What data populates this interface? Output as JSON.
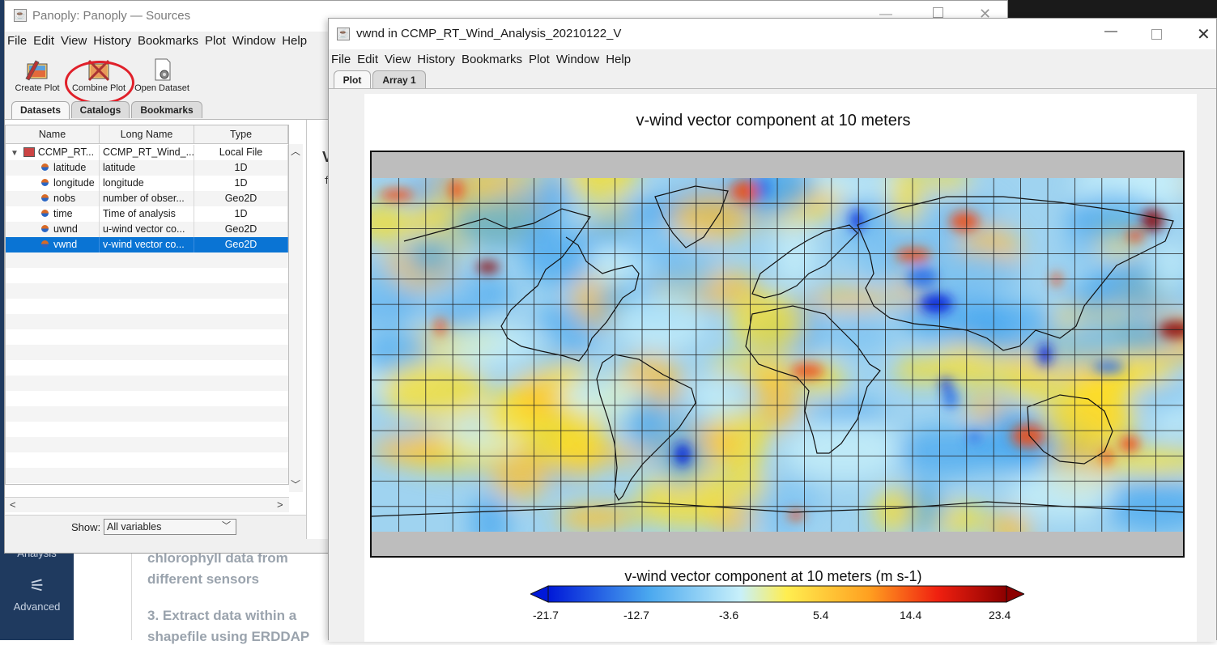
{
  "background": {
    "analysis_label": "Analysis",
    "advanced_label": "Advanced",
    "text_lines": [
      "chlorophyll data from",
      "different sensors",
      "3. Extract data within a",
      "shapefile using ERDDAP"
    ]
  },
  "sources_window": {
    "title": "Panoply: Panoply — Sources",
    "menu": [
      "File",
      "Edit",
      "View",
      "History",
      "Bookmarks",
      "Plot",
      "Window",
      "Help"
    ],
    "toolbar": {
      "create_plot": "Create Plot",
      "combine_plot": "Combine Plot",
      "open_dataset": "Open Dataset"
    },
    "tabs": [
      "Datasets",
      "Catalogs",
      "Bookmarks"
    ],
    "table": {
      "headers": [
        "Name",
        "Long Name",
        "Type"
      ],
      "dataset": {
        "name": "CCMP_RT...",
        "long_name": "CCMP_RT_Wind_...",
        "type": "Local File"
      },
      "rows": [
        {
          "name": "latitude",
          "long_name": "latitude",
          "type": "1D"
        },
        {
          "name": "longitude",
          "long_name": "longitude",
          "type": "1D"
        },
        {
          "name": "nobs",
          "long_name": "number of obser...",
          "type": "Geo2D"
        },
        {
          "name": "time",
          "long_name": "Time of analysis",
          "type": "1D"
        },
        {
          "name": "uwnd",
          "long_name": "u-wind vector co...",
          "type": "Geo2D"
        },
        {
          "name": "vwnd",
          "long_name": "v-wind vector co...",
          "type": "Geo2D"
        }
      ],
      "selected_row": "vwnd"
    },
    "show_label": "Show:",
    "show_value": "All variables",
    "side_fragment": "V",
    "side_fragment2": "f"
  },
  "plot_window": {
    "title": "vwnd in CCMP_RT_Wind_Analysis_20210122_V",
    "menu": [
      "File",
      "Edit",
      "View",
      "History",
      "Bookmarks",
      "Plot",
      "Window",
      "Help"
    ],
    "tabs": [
      "Plot",
      "Array 1"
    ],
    "plot_title": "v-wind vector component at 10 meters",
    "colorbar_title": "v-wind vector component at 10 meters (m s-1)",
    "colorbar_ticks": [
      "-21.7",
      "-12.7",
      "-3.6",
      "5.4",
      "14.4",
      "23.4"
    ],
    "colorbar_min": -21.7,
    "colorbar_max": 23.4,
    "colors": {
      "low": "#0018d8",
      "mid_low": "#4aa8ef",
      "mid": "#c8f0fa",
      "mid_high": "#ffe020",
      "high": "#f04a10",
      "max": "#8c0000",
      "nodata": "#bdbdbd"
    }
  },
  "icons": {
    "create_plot": "create-plot-icon",
    "combine_plot": "combine-plot-icon",
    "open_dataset": "open-dataset-icon",
    "java_app": "java-app-icon"
  }
}
